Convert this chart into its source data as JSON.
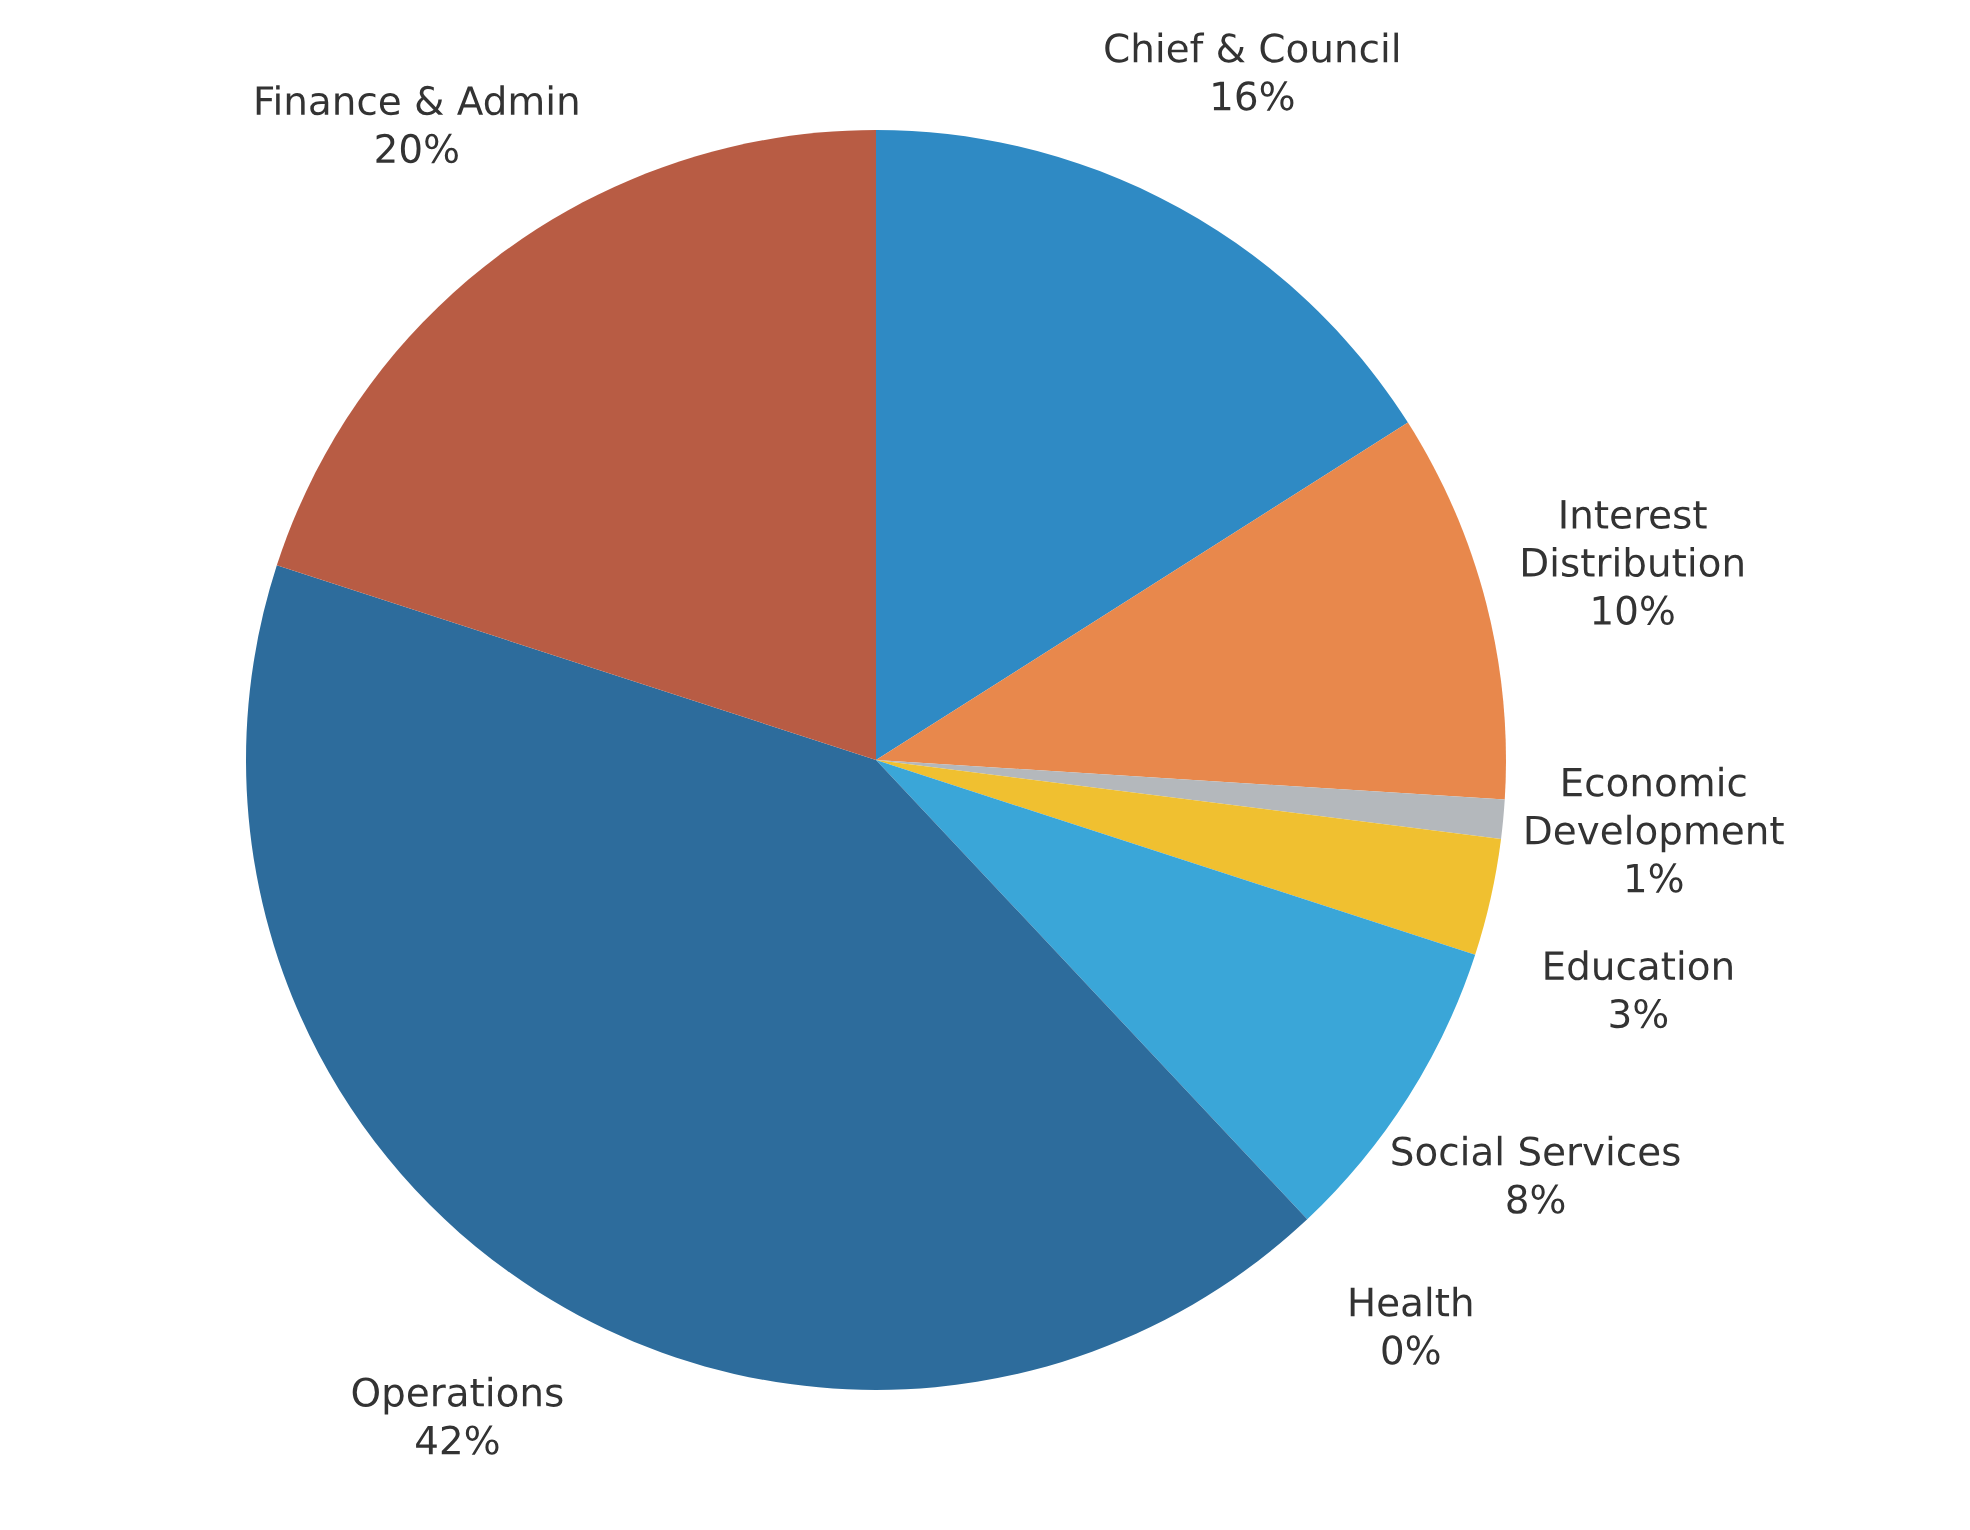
{
  "chart_data": {
    "type": "pie",
    "categories": [
      "Chief & Council",
      "Interest Distribution",
      "Economic Development",
      "Education",
      "Social Services",
      "Health",
      "Operations",
      "Finance & Admin"
    ],
    "values": [
      16,
      10,
      1,
      3,
      8,
      0,
      42,
      20
    ],
    "value_labels": [
      "16%",
      "10%",
      "1%",
      "3%",
      "8%",
      "0%",
      "42%",
      "20%"
    ],
    "colors": [
      "#2f8ac4",
      "#e8884c",
      "#b4b8bc",
      "#f0c030",
      "#3aa6d8",
      "#2a78b0",
      "#2d6c9c",
      "#b85c44"
    ]
  }
}
